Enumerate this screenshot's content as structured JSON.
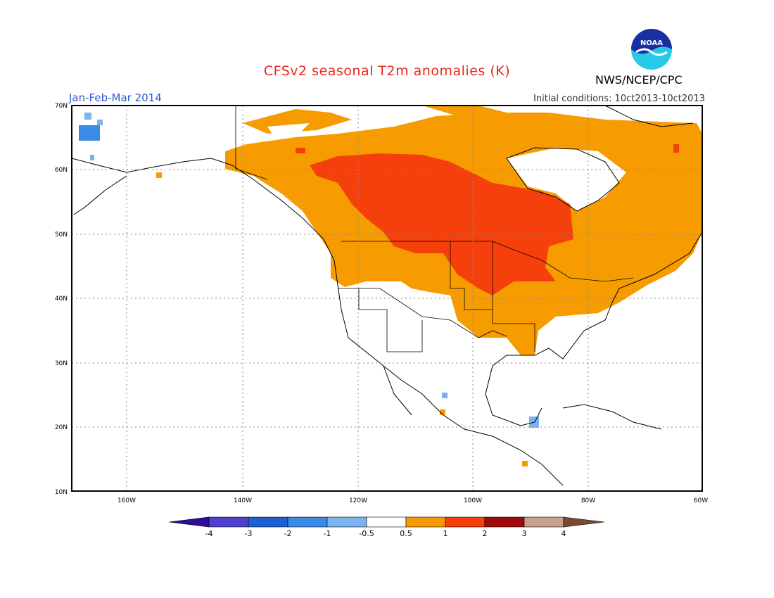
{
  "header": {
    "title": "CFSv2 seasonal T2m anomalies (K)",
    "period": "Jan-Feb-Mar 2014",
    "initial_conditions": "Initial conditions: 10ct2013-10ct2013",
    "agency": "NWS/NCEP/CPC",
    "logo_text": "NOAA"
  },
  "map": {
    "lat_labels": [
      "70N",
      "60N",
      "50N",
      "40N",
      "30N",
      "20N",
      "10N"
    ],
    "lon_labels": [
      "160W",
      "140W",
      "120W",
      "100W",
      "80W",
      "60W"
    ],
    "extent": {
      "lon_min": -172,
      "lon_max": -60,
      "lat_min": 10,
      "lat_max": 70
    }
  },
  "colorbar": {
    "labels": [
      "-4",
      "-3",
      "-2",
      "-1",
      "-0.5",
      "0.5",
      "1",
      "2",
      "3",
      "4"
    ],
    "colors": [
      "#2f0c9c",
      "#5040d0",
      "#1e60d0",
      "#3a8ae8",
      "#7ab4f0",
      "#ffffff",
      "#f79c00",
      "#f5400c",
      "#a00b0b",
      "#c9a08c",
      "#7a4a30"
    ]
  }
}
